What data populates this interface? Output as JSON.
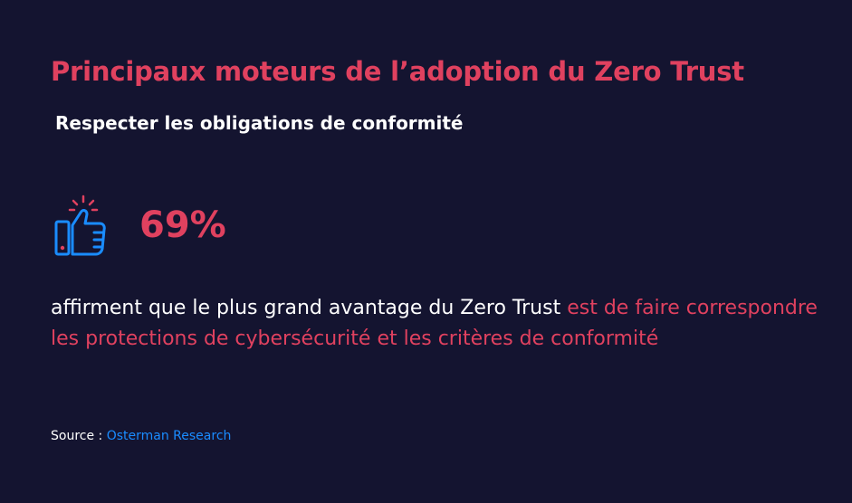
{
  "header": {
    "title": "Principaux moteurs de l’adoption du Zero Trust",
    "subtitle": "Respecter les obligations de conformité"
  },
  "stat": {
    "icon": "thumbs-up-icon",
    "value": "69%",
    "text_plain": "affirment que le plus grand avantage du Zero Trust ",
    "text_highlight": "est de faire correspondre les protections de cybersécurité et les critères de conformité"
  },
  "source": {
    "label": "Source : ",
    "link_text": "Osterman Research"
  },
  "colors": {
    "background": "#141430",
    "accent": "#e0415f",
    "icon_blue": "#1a8cff",
    "text": "#ffffff"
  }
}
